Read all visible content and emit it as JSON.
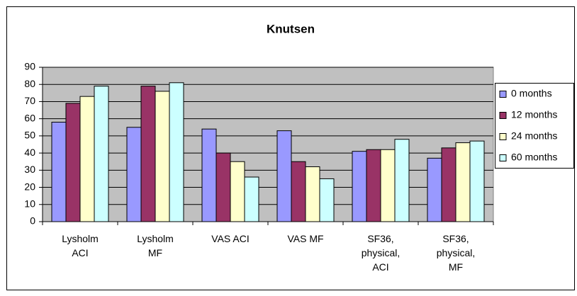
{
  "chart_data": {
    "type": "bar",
    "title": "Knutsen",
    "categories": [
      "Lysholm ACI",
      "Lysholm MF",
      "VAS ACI",
      "VAS MF",
      "SF36, physical, ACI",
      "SF36, physical, MF"
    ],
    "series": [
      {
        "name": "0 months",
        "color": "#9999ff",
        "values": [
          58,
          55,
          54,
          53,
          41,
          37
        ]
      },
      {
        "name": "12 months",
        "color": "#993366",
        "values": [
          69,
          79,
          40,
          35,
          42,
          43
        ]
      },
      {
        "name": "24 months",
        "color": "#ffffcc",
        "values": [
          73,
          76,
          35,
          32,
          42,
          46
        ]
      },
      {
        "name": "60 months",
        "color": "#ccffff",
        "values": [
          79,
          81,
          26,
          25,
          48,
          47
        ]
      }
    ],
    "ylim": [
      0,
      90
    ],
    "yticks": [
      0,
      10,
      20,
      30,
      40,
      50,
      60,
      70,
      80,
      90
    ],
    "grid": true,
    "legend": "right"
  }
}
